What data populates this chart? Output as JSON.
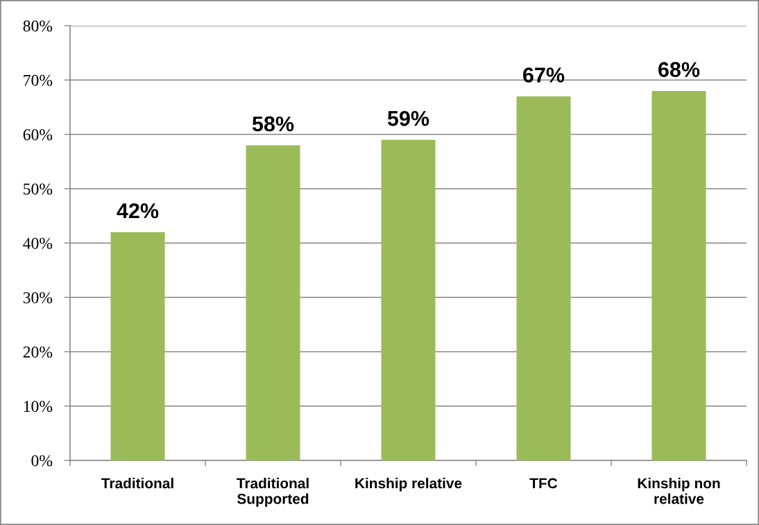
{
  "chart_data": {
    "type": "bar",
    "categories": [
      "Traditional",
      "Traditional\nSupported",
      "Kinship relative",
      "TFC",
      "Kinship non\nrelative"
    ],
    "values": [
      42,
      58,
      59,
      67,
      68
    ],
    "value_labels": [
      "42%",
      "58%",
      "59%",
      "67%",
      "68%"
    ],
    "color": "#9bbb59",
    "ylim": [
      0,
      80
    ],
    "yticks": [
      {
        "value": 0,
        "label": "0%"
      },
      {
        "value": 10,
        "label": "10%"
      },
      {
        "value": 20,
        "label": "20%"
      },
      {
        "value": 30,
        "label": "30%"
      },
      {
        "value": 40,
        "label": "40%"
      },
      {
        "value": 50,
        "label": "50%"
      },
      {
        "value": 60,
        "label": "60%"
      },
      {
        "value": 70,
        "label": "70%"
      },
      {
        "value": 80,
        "label": "80%"
      }
    ],
    "grid": "y"
  }
}
